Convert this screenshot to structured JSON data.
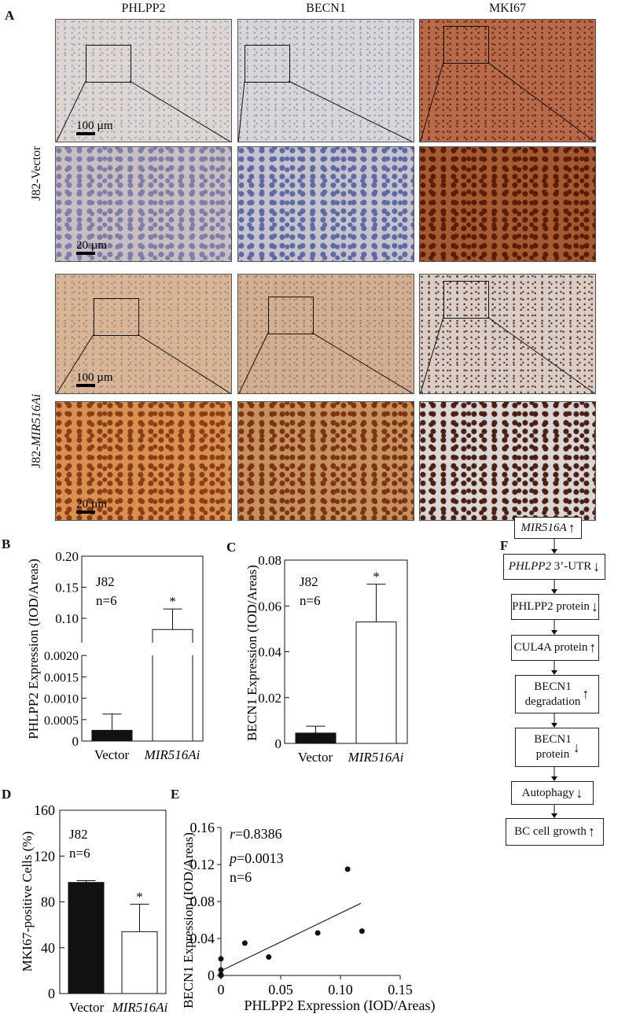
{
  "panel_labels": {
    "a": "A",
    "b": "B",
    "c": "C",
    "d": "D",
    "e": "E",
    "f": "F"
  },
  "panel_a": {
    "columns": [
      "PHLPP2",
      "BECN1",
      "MKI67"
    ],
    "rows": [
      "J82-Vector",
      "J82-MIR516Ai"
    ],
    "row_italic_part": "MIR516Ai",
    "scale_bars": {
      "low_mag": "100 µm",
      "high_mag": "20 µm"
    }
  },
  "chart_data": [
    {
      "panel": "B",
      "type": "bar",
      "categories": [
        "Vector",
        "MIR516Ai"
      ],
      "values": [
        0.00025,
        0.082
      ],
      "errors_upper": [
        0.00063,
        0.115
      ],
      "ylabel": "PHLPP2 Expression    (IOD/Areas)",
      "broken_axis": true,
      "yticks_lower": [
        "0",
        "0.0005",
        "0.0010",
        "0.0015",
        "0.0020"
      ],
      "yticks_upper": [
        "0.10",
        "0.15",
        "0.20"
      ],
      "annotation": [
        "J82",
        "n=6"
      ],
      "significance": [
        "",
        "*"
      ],
      "colors": [
        "#111111",
        "#ffffff"
      ]
    },
    {
      "panel": "C",
      "type": "bar",
      "categories": [
        "Vector",
        "MIR516Ai"
      ],
      "values": [
        0.0045,
        0.053
      ],
      "errors_upper": [
        0.0075,
        0.0695
      ],
      "ylabel": "BECN1 Expression    (IOD/Areas)",
      "ylim": [
        0,
        0.08
      ],
      "yticks": [
        "0",
        "0.02",
        "0.04",
        "0.06",
        "0.08"
      ],
      "annotation": [
        "J82",
        "n=6"
      ],
      "significance": [
        "",
        "*"
      ],
      "colors": [
        "#111111",
        "#ffffff"
      ]
    },
    {
      "panel": "D",
      "type": "bar",
      "categories": [
        "Vector",
        "MIR516Ai"
      ],
      "values": [
        97,
        54
      ],
      "errors_upper": [
        98.5,
        78
      ],
      "ylabel": "MKI67-positive Cells (%)",
      "ylim": [
        0,
        160
      ],
      "yticks": [
        "0",
        "40",
        "80",
        "120",
        "160"
      ],
      "annotation": [
        "J82",
        "n=6"
      ],
      "significance": [
        "",
        "*"
      ],
      "colors": [
        "#111111",
        "#ffffff"
      ]
    },
    {
      "panel": "E",
      "type": "scatter",
      "x": [
        0,
        0,
        0,
        0,
        0.02,
        0.04,
        0.081,
        0.106,
        0.118
      ],
      "y": [
        0.018,
        0.006,
        0,
        0.001,
        0.035,
        0.02,
        0.046,
        0.115,
        0.048
      ],
      "fit_line": {
        "x": [
          0,
          0.117
        ],
        "y": [
          0.005,
          0.078
        ]
      },
      "xlabel": "PHLPP2 Expression   (IOD/Areas)",
      "ylabel": "BECN1 Expression    (IOD/Areas)",
      "xlim": [
        0,
        0.15
      ],
      "ylim": [
        0,
        0.16
      ],
      "xticks": [
        "0",
        "0.05",
        "0.10",
        "0.15"
      ],
      "yticks": [
        "0",
        "0.04",
        "0.08",
        "0.12",
        "0.16"
      ],
      "stats": {
        "r_label": "r",
        "r_value": "=0.8386",
        "p_label": "p",
        "p_value": "=0.0013",
        "n": "n=6"
      }
    }
  ],
  "panel_f": {
    "steps": [
      {
        "italic": "MIR516A",
        "text": "",
        "arrow": "↑"
      },
      {
        "italic": "PHLPP2",
        "text": " 3’-UTR",
        "arrow": "↓"
      },
      {
        "italic": "",
        "text": "PHLPP2 protein",
        "arrow": "↓"
      },
      {
        "italic": "",
        "text": "CUL4A protein",
        "arrow": "↑"
      },
      {
        "italic": "",
        "text": "BECN1 degradation",
        "arrow": "↑"
      },
      {
        "italic": "",
        "text": "BECN1 protein",
        "arrow": "↓"
      },
      {
        "italic": "",
        "text": "Autophagy",
        "arrow": "↓"
      },
      {
        "italic": "",
        "text": "BC cell growth",
        "arrow": "↑"
      }
    ]
  }
}
